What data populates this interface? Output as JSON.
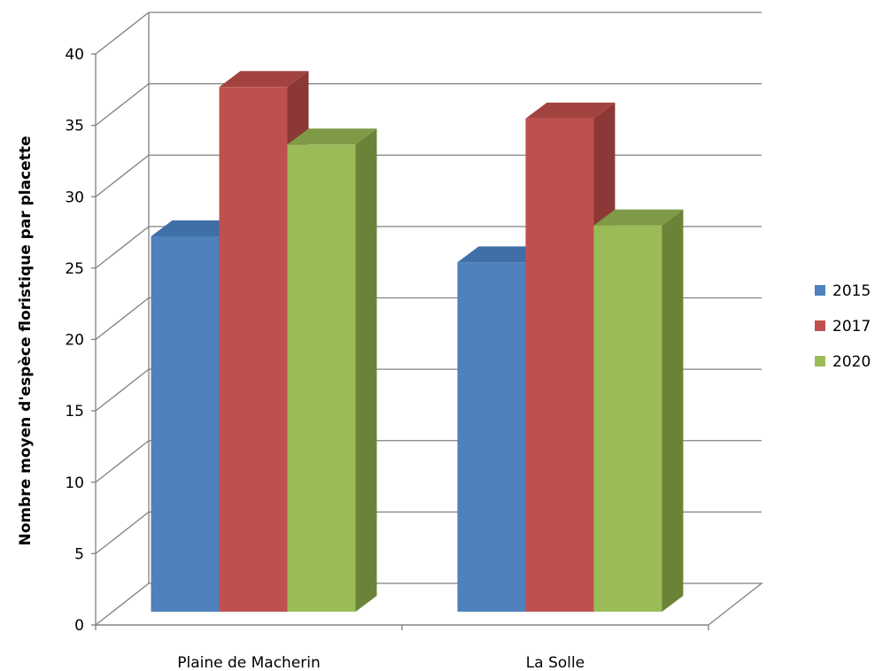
{
  "chart_data": {
    "type": "bar",
    "style": "3d-clustered-column",
    "categories": [
      "Plaine de Macherin",
      "La Solle"
    ],
    "series": [
      {
        "name": "2015",
        "values": [
          27.4,
          25.5
        ],
        "color": "#4F81BD",
        "side_color": "#385D8A",
        "top_color": "#3F6FA6"
      },
      {
        "name": "2017",
        "values": [
          38.3,
          36.0
        ],
        "color": "#C0504D",
        "side_color": "#8C3836",
        "top_color": "#A34340"
      },
      {
        "name": "2020",
        "values": [
          34.1,
          28.2
        ],
        "color": "#9BBB59",
        "side_color": "#6B8338",
        "top_color": "#7F9A46"
      }
    ],
    "xlabel": "",
    "ylabel": "Nombre moyen d'espèce floristique par placette",
    "ylim": [
      0,
      40
    ],
    "yticks": [
      "0",
      "5",
      "10",
      "15",
      "20",
      "25",
      "30",
      "35",
      "40"
    ],
    "grid": true,
    "legend_position": "right"
  }
}
